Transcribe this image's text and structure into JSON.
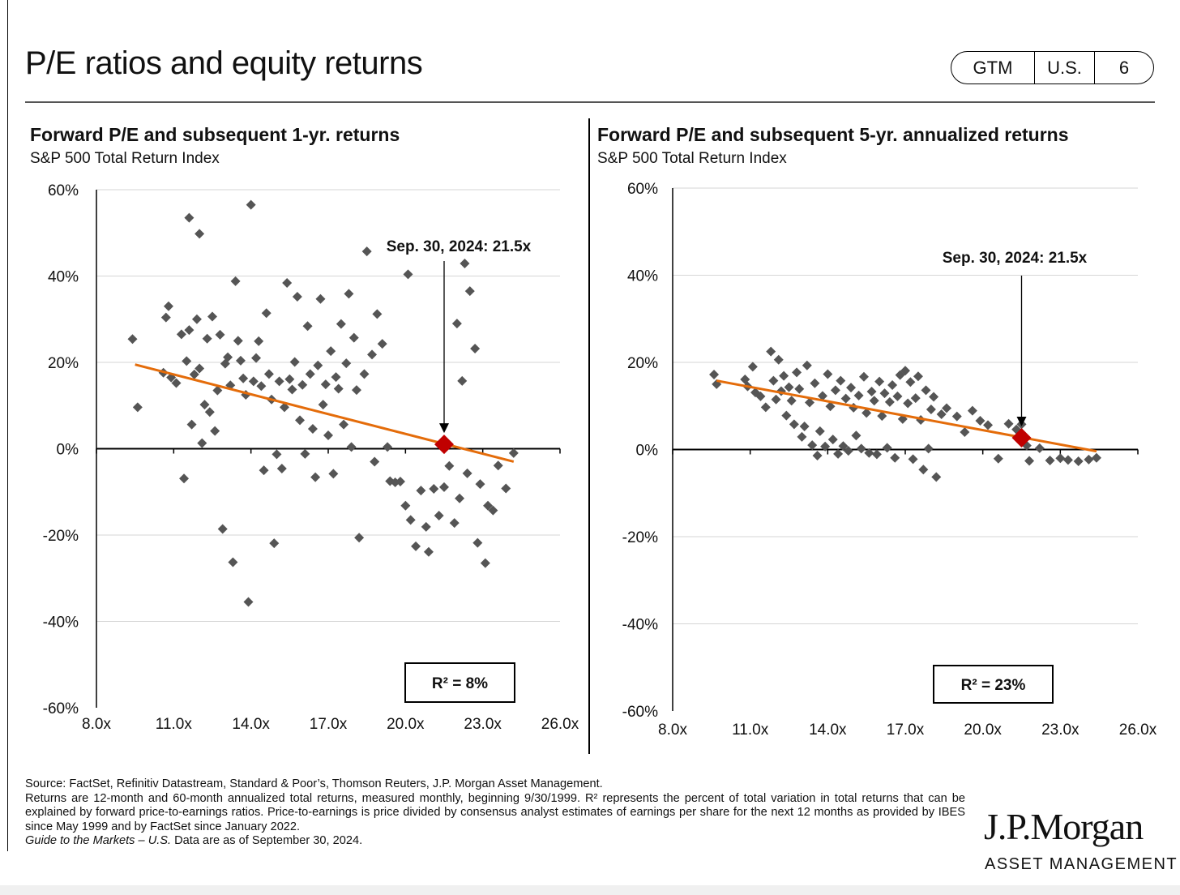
{
  "header": {
    "title": "P/E ratios and equity returns",
    "tags": [
      "GTM",
      "U.S.",
      "6"
    ]
  },
  "colors": {
    "points": "#555555",
    "trend": "#e46c0a",
    "marker": "#c00000"
  },
  "chart_data": [
    {
      "type": "scatter",
      "title": "Forward P/E and subsequent 1-yr. returns",
      "subtitle": "S&P 500 Total Return Index",
      "xlim": [
        8,
        26
      ],
      "ylim": [
        -60,
        60
      ],
      "xticks": [
        "8.0x",
        "11.0x",
        "14.0x",
        "17.0x",
        "20.0x",
        "23.0x",
        "26.0x"
      ],
      "yticks": [
        "-60%",
        "-40%",
        "-20%",
        "0%",
        "20%",
        "40%",
        "60%"
      ],
      "grid": true,
      "points": [
        [
          9.4,
          25.4
        ],
        [
          9.6,
          9.6
        ],
        [
          10.6,
          17.6
        ],
        [
          10.8,
          33.0
        ],
        [
          10.7,
          30.4
        ],
        [
          10.9,
          16.5
        ],
        [
          11.1,
          15.2
        ],
        [
          11.3,
          26.5
        ],
        [
          11.4,
          -6.9
        ],
        [
          11.5,
          20.3
        ],
        [
          11.6,
          27.5
        ],
        [
          11.7,
          5.6
        ],
        [
          11.8,
          17.2
        ],
        [
          11.9,
          30.0
        ],
        [
          12.0,
          18.6
        ],
        [
          11.6,
          53.5
        ],
        [
          12.0,
          49.8
        ],
        [
          12.1,
          1.3
        ],
        [
          12.2,
          10.2
        ],
        [
          12.3,
          25.5
        ],
        [
          12.4,
          8.5
        ],
        [
          12.5,
          30.6
        ],
        [
          12.6,
          4.1
        ],
        [
          12.7,
          13.5
        ],
        [
          12.8,
          26.4
        ],
        [
          12.9,
          -18.6
        ],
        [
          13.0,
          19.7
        ],
        [
          13.1,
          21.2
        ],
        [
          13.2,
          14.7
        ],
        [
          13.3,
          -26.3
        ],
        [
          13.4,
          38.8
        ],
        [
          13.5,
          25.0
        ],
        [
          13.6,
          20.4
        ],
        [
          13.7,
          16.3
        ],
        [
          13.8,
          12.5
        ],
        [
          13.9,
          -35.5
        ],
        [
          14.0,
          56.5
        ],
        [
          14.1,
          15.6
        ],
        [
          14.2,
          21.0
        ],
        [
          14.3,
          24.9
        ],
        [
          14.4,
          14.5
        ],
        [
          14.5,
          -5.0
        ],
        [
          14.6,
          31.4
        ],
        [
          14.7,
          17.3
        ],
        [
          14.8,
          11.4
        ],
        [
          14.9,
          -21.9
        ],
        [
          15.0,
          -1.3
        ],
        [
          15.1,
          15.6
        ],
        [
          15.2,
          -4.6
        ],
        [
          15.3,
          9.6
        ],
        [
          15.4,
          38.4
        ],
        [
          15.5,
          16.1
        ],
        [
          15.6,
          13.7
        ],
        [
          15.7,
          20.1
        ],
        [
          15.8,
          35.2
        ],
        [
          15.9,
          6.6
        ],
        [
          16.0,
          14.8
        ],
        [
          16.1,
          -1.2
        ],
        [
          16.2,
          28.4
        ],
        [
          16.3,
          17.3
        ],
        [
          16.4,
          4.6
        ],
        [
          16.5,
          -6.6
        ],
        [
          16.6,
          19.3
        ],
        [
          16.7,
          34.7
        ],
        [
          16.8,
          10.2
        ],
        [
          16.9,
          14.9
        ],
        [
          17.0,
          3.1
        ],
        [
          17.1,
          22.6
        ],
        [
          17.2,
          -5.8
        ],
        [
          17.3,
          16.6
        ],
        [
          17.4,
          13.9
        ],
        [
          17.5,
          28.9
        ],
        [
          17.6,
          5.6
        ],
        [
          17.7,
          19.8
        ],
        [
          17.8,
          35.9
        ],
        [
          17.9,
          0.4
        ],
        [
          18.0,
          25.7
        ],
        [
          18.1,
          13.6
        ],
        [
          18.2,
          -20.6
        ],
        [
          18.4,
          17.3
        ],
        [
          18.5,
          45.7
        ],
        [
          18.7,
          21.8
        ],
        [
          18.8,
          -3.0
        ],
        [
          18.9,
          31.2
        ],
        [
          19.1,
          24.3
        ],
        [
          19.3,
          0.4
        ],
        [
          19.4,
          -7.5
        ],
        [
          19.6,
          -7.8
        ],
        [
          19.8,
          -7.6
        ],
        [
          20.0,
          -13.2
        ],
        [
          20.1,
          40.4
        ],
        [
          20.2,
          -16.5
        ],
        [
          20.4,
          -22.6
        ],
        [
          20.6,
          -9.7
        ],
        [
          20.8,
          -18.1
        ],
        [
          20.9,
          -23.9
        ],
        [
          21.1,
          -9.3
        ],
        [
          21.3,
          -15.5
        ],
        [
          21.5,
          -8.9
        ],
        [
          21.7,
          -4.0
        ],
        [
          21.9,
          -17.2
        ],
        [
          22.0,
          29.0
        ],
        [
          22.1,
          -11.5
        ],
        [
          22.2,
          15.7
        ],
        [
          22.3,
          42.9
        ],
        [
          22.4,
          -5.7
        ],
        [
          22.5,
          36.5
        ],
        [
          22.7,
          23.2
        ],
        [
          22.8,
          -21.8
        ],
        [
          22.9,
          -8.2
        ],
        [
          23.1,
          -26.5
        ],
        [
          23.2,
          -13.2
        ],
        [
          23.4,
          -14.3
        ],
        [
          23.6,
          -3.9
        ],
        [
          23.9,
          -9.2
        ],
        [
          24.2,
          -1.0
        ]
      ],
      "trendline": [
        [
          9.5,
          19.5
        ],
        [
          24.2,
          -3.0
        ]
      ],
      "highlight": {
        "x": 21.5,
        "y": 1.0,
        "label": "Sep. 30, 2024:  21.5x"
      },
      "r2_label": "R² = 8%"
    },
    {
      "type": "scatter",
      "title": "Forward P/E and subsequent 5-yr. annualized returns",
      "subtitle": "S&P 500 Total Return Index",
      "xlim": [
        8,
        26
      ],
      "ylim": [
        -60,
        60
      ],
      "xticks": [
        "8.0x",
        "11.0x",
        "14.0x",
        "17.0x",
        "20.0x",
        "23.0x",
        "26.0x"
      ],
      "yticks": [
        "-60%",
        "-40%",
        "-20%",
        "0%",
        "20%",
        "40%",
        "60%"
      ],
      "grid": true,
      "points": [
        [
          9.6,
          17.2
        ],
        [
          9.7,
          15.0
        ],
        [
          10.8,
          16.1
        ],
        [
          10.9,
          14.5
        ],
        [
          11.1,
          19.0
        ],
        [
          11.2,
          13.1
        ],
        [
          11.4,
          12.2
        ],
        [
          11.6,
          9.7
        ],
        [
          11.8,
          22.5
        ],
        [
          11.9,
          15.8
        ],
        [
          12.0,
          11.5
        ],
        [
          12.1,
          20.6
        ],
        [
          12.2,
          13.4
        ],
        [
          12.3,
          16.9
        ],
        [
          12.4,
          7.8
        ],
        [
          12.5,
          14.3
        ],
        [
          12.6,
          11.2
        ],
        [
          12.7,
          5.8
        ],
        [
          12.8,
          17.7
        ],
        [
          12.9,
          13.9
        ],
        [
          13.0,
          2.9
        ],
        [
          13.1,
          5.3
        ],
        [
          13.2,
          19.3
        ],
        [
          13.3,
          10.8
        ],
        [
          13.4,
          1.0
        ],
        [
          13.5,
          15.2
        ],
        [
          13.6,
          -1.4
        ],
        [
          13.7,
          4.2
        ],
        [
          13.8,
          12.3
        ],
        [
          13.9,
          0.7
        ],
        [
          14.0,
          17.3
        ],
        [
          14.1,
          9.9
        ],
        [
          14.2,
          2.3
        ],
        [
          14.3,
          13.6
        ],
        [
          14.4,
          -1.0
        ],
        [
          14.5,
          15.8
        ],
        [
          14.6,
          0.8
        ],
        [
          14.7,
          11.7
        ],
        [
          14.8,
          -0.3
        ],
        [
          14.9,
          14.2
        ],
        [
          15.0,
          9.6
        ],
        [
          15.1,
          3.2
        ],
        [
          15.2,
          12.4
        ],
        [
          15.3,
          0.2
        ],
        [
          15.4,
          16.7
        ],
        [
          15.5,
          8.4
        ],
        [
          15.6,
          -0.8
        ],
        [
          15.7,
          13.3
        ],
        [
          15.8,
          11.2
        ],
        [
          15.9,
          -1.1
        ],
        [
          16.0,
          15.6
        ],
        [
          16.1,
          7.7
        ],
        [
          16.2,
          12.9
        ],
        [
          16.3,
          0.4
        ],
        [
          16.4,
          10.9
        ],
        [
          16.5,
          14.8
        ],
        [
          16.6,
          -1.9
        ],
        [
          16.7,
          12.2
        ],
        [
          16.8,
          17.1
        ],
        [
          16.9,
          7.0
        ],
        [
          17.0,
          18.1
        ],
        [
          17.1,
          10.6
        ],
        [
          17.2,
          15.5
        ],
        [
          17.3,
          -2.2
        ],
        [
          17.4,
          11.8
        ],
        [
          17.5,
          16.8
        ],
        [
          17.6,
          6.8
        ],
        [
          17.7,
          -4.6
        ],
        [
          17.8,
          13.6
        ],
        [
          17.9,
          0.2
        ],
        [
          18.0,
          9.2
        ],
        [
          18.1,
          12.1
        ],
        [
          18.2,
          -6.3
        ],
        [
          18.4,
          8.1
        ],
        [
          18.6,
          9.5
        ],
        [
          19.0,
          7.6
        ],
        [
          19.3,
          4.0
        ],
        [
          19.6,
          8.9
        ],
        [
          19.9,
          6.6
        ],
        [
          20.2,
          5.6
        ],
        [
          20.6,
          -2.1
        ],
        [
          21.0,
          5.9
        ],
        [
          21.3,
          4.6
        ],
        [
          21.5,
          5.8
        ],
        [
          21.7,
          0.9
        ],
        [
          21.8,
          -2.6
        ],
        [
          22.2,
          0.3
        ],
        [
          22.6,
          -2.5
        ],
        [
          23.0,
          -2.0
        ],
        [
          23.3,
          -2.4
        ],
        [
          23.7,
          -2.7
        ],
        [
          24.1,
          -2.3
        ],
        [
          24.4,
          -1.9
        ]
      ],
      "trendline": [
        [
          9.7,
          15.8
        ],
        [
          24.4,
          -0.4
        ]
      ],
      "highlight": {
        "x": 21.5,
        "y": 2.7,
        "label": "Sep. 30, 2024:  21.5x"
      },
      "r2_label": "R² = 23%"
    }
  ],
  "footer": {
    "source": "Source: FactSet, Refinitiv Datastream, Standard & Poor’s, Thomson Reuters, J.P. Morgan Asset Management.",
    "note": "Returns are 12-month and 60-month annualized total returns, measured monthly, beginning 9/30/1999. R² represents the percent of total variation in total returns that can be explained by forward price-to-earnings ratios. Price-to-earnings is price divided by consensus analyst estimates of earnings per share for the next 12 months as provided by IBES since May 1999 and by FactSet since January 2022.",
    "guide_italic": "Guide to the Markets – U.S.",
    "guide_rest": " Data are as of September 30, 2024."
  },
  "logo": {
    "name": "J.P.Morgan",
    "sub": "ASSET MANAGEMENT"
  }
}
